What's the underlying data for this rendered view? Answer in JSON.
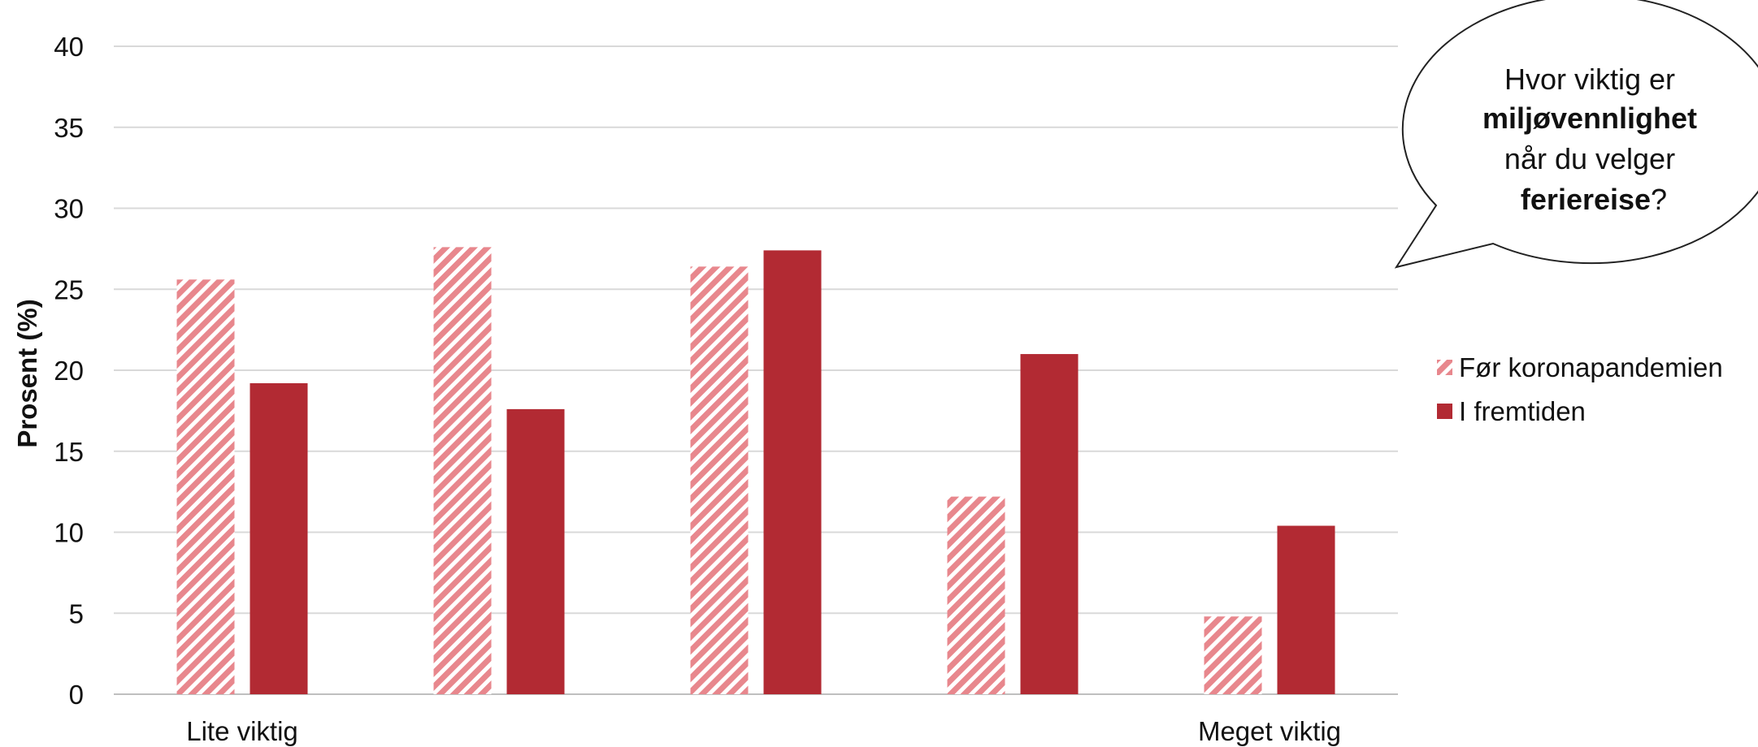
{
  "chart_data": {
    "type": "bar",
    "categories": [
      "Lite viktig",
      "",
      "",
      "",
      "Meget viktig"
    ],
    "series": [
      {
        "name": "Før koronapandemien",
        "values": [
          25.6,
          27.6,
          26.4,
          12.2,
          4.8
        ],
        "color": "#e8878d",
        "pattern": "diagonal-stripes"
      },
      {
        "name": "I fremtiden",
        "values": [
          19.2,
          17.6,
          27.4,
          21.0,
          10.4
        ],
        "color": "#b22a33",
        "pattern": "solid"
      }
    ],
    "ylabel": "Prosent (%)",
    "xlabel": "",
    "ylim": [
      0,
      40
    ],
    "yticks": [
      0,
      5,
      10,
      15,
      20,
      25,
      30,
      35,
      40
    ],
    "grid": true,
    "legend_position": "right",
    "callout": {
      "line1": "Hvor viktig er",
      "line2": "miljøvennlighet",
      "line3": "når du velger",
      "line4_bold": "feriereise",
      "line4_end": "?"
    }
  }
}
